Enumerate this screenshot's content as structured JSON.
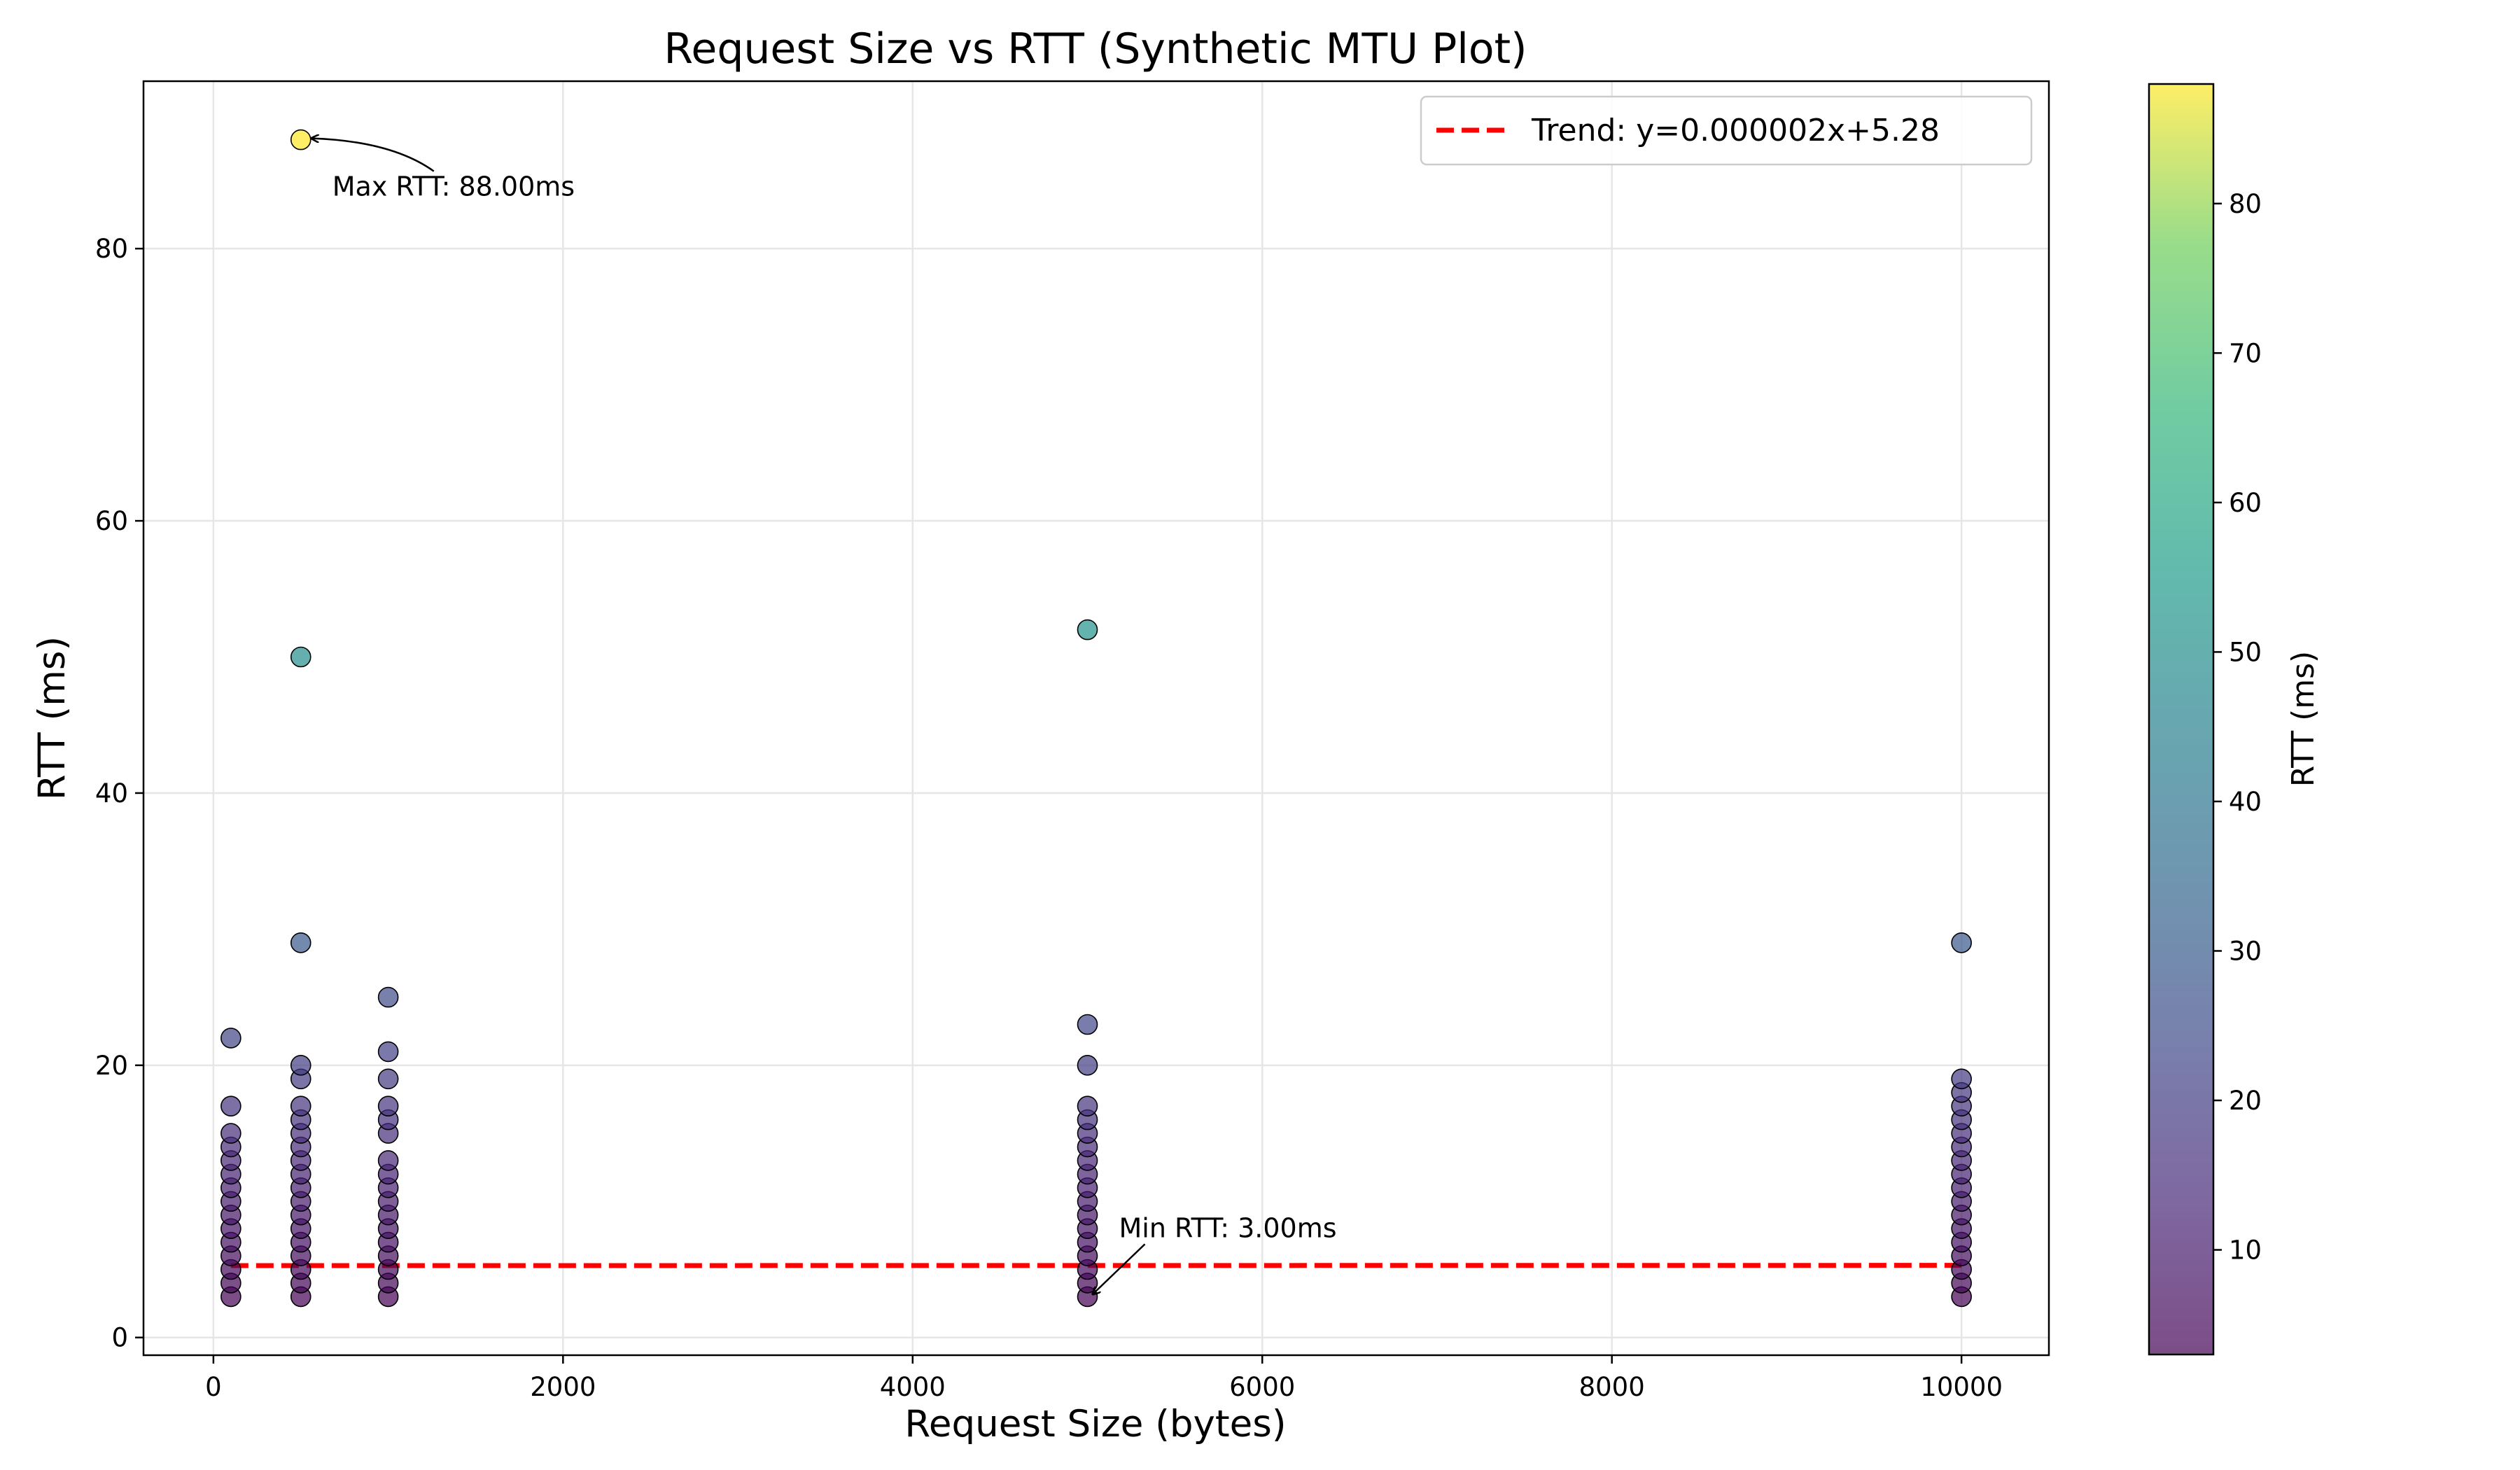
{
  "chart_data": {
    "type": "scatter",
    "title": "Request Size vs RTT (Synthetic MTU Plot)",
    "xlabel": "Request Size (bytes)",
    "ylabel": "RTT (ms)",
    "xlim": [
      -400,
      10500
    ],
    "ylim": [
      -1.3,
      92.3
    ],
    "xticks": [
      0,
      2000,
      4000,
      6000,
      8000,
      10000
    ],
    "yticks": [
      0,
      20,
      40,
      60,
      80
    ],
    "grid": true,
    "legend_position": "top-right",
    "colormap": "viridis",
    "colorbar": {
      "label": "RTT (ms)",
      "range": [
        3,
        88
      ],
      "ticks": [
        10,
        20,
        30,
        40,
        50,
        60,
        70,
        80
      ]
    },
    "trend": {
      "label": "Trend: y=0.000002x+5.28",
      "slope": 2e-06,
      "intercept": 5.28,
      "x_range": [
        100,
        10000
      ],
      "color": "#ff0000",
      "style": "dashed"
    },
    "annotations": [
      {
        "text": "Max RTT: 88.00ms",
        "x": 500,
        "y": 88
      },
      {
        "text": "Min RTT: 3.00ms",
        "x": 5000,
        "y": 3
      }
    ],
    "series": [
      {
        "x": 100,
        "values": [
          3,
          4,
          5,
          6,
          7,
          8,
          9,
          10,
          11,
          12,
          13,
          14,
          15,
          17,
          22
        ]
      },
      {
        "x": 500,
        "values": [
          3,
          4,
          5,
          6,
          7,
          8,
          9,
          10,
          11,
          12,
          13,
          14,
          15,
          16,
          17,
          19,
          20,
          29,
          50,
          88
        ]
      },
      {
        "x": 1000,
        "values": [
          3,
          4,
          5,
          6,
          7,
          8,
          9,
          10,
          11,
          12,
          13,
          15,
          16,
          17,
          19,
          21,
          25
        ]
      },
      {
        "x": 5000,
        "values": [
          3,
          4,
          5,
          6,
          7,
          8,
          9,
          10,
          11,
          12,
          13,
          14,
          15,
          16,
          17,
          20,
          23,
          52
        ]
      },
      {
        "x": 10000,
        "values": [
          3,
          4,
          5,
          6,
          7,
          8,
          9,
          10,
          11,
          12,
          13,
          14,
          15,
          16,
          17,
          18,
          19,
          29
        ]
      }
    ]
  }
}
